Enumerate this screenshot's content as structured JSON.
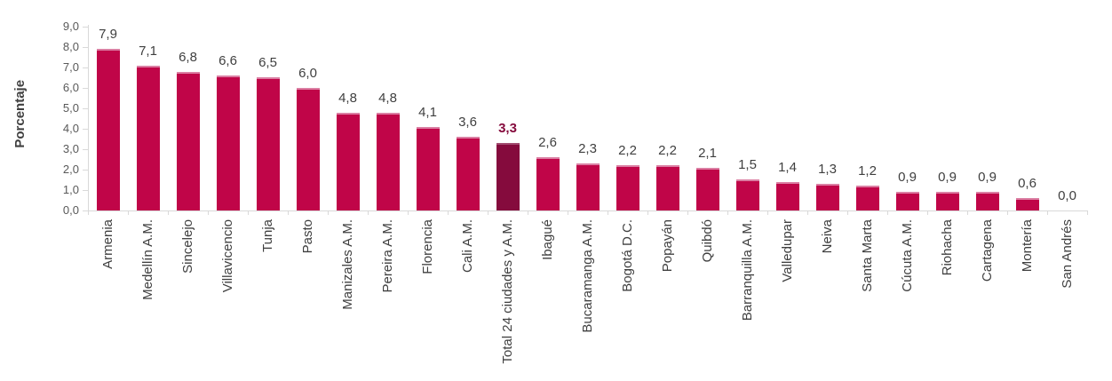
{
  "chart_data": {
    "type": "bar",
    "title": "",
    "xlabel": "",
    "ylabel": "Porcentaje",
    "ylim": [
      0,
      9
    ],
    "grid": false,
    "legend": "none",
    "yticks": [
      "9,0",
      "8,0",
      "7,0",
      "6,0",
      "5,0",
      "4,0",
      "3,0",
      "2,0",
      "1,0",
      "0,0"
    ],
    "categories": [
      "Armenia",
      "Medellín A.M.",
      "Sincelejo",
      "Villavicencio",
      "Tunja",
      "Pasto",
      "Manizales A.M.",
      "Pereira A.M.",
      "Florencia",
      "Cali A.M.",
      "Total 24 ciudades y A.M.",
      "Ibagué",
      "Bucaramanga A.M.",
      "Bogotá D.C.",
      "Popayán",
      "Quibdó",
      "Barranquilla A.M.",
      "Valledupar",
      "Neiva",
      "Santa Marta",
      "Cúcuta A.M.",
      "Riohacha",
      "Cartagena",
      "Montería",
      "San Andrés"
    ],
    "values": [
      7.9,
      7.1,
      6.8,
      6.6,
      6.5,
      6.0,
      4.8,
      4.8,
      4.1,
      3.6,
      3.3,
      2.6,
      2.3,
      2.2,
      2.2,
      2.1,
      1.5,
      1.4,
      1.3,
      1.2,
      0.9,
      0.9,
      0.9,
      0.6,
      0.0
    ],
    "value_labels": [
      "7,9",
      "7,1",
      "6,8",
      "6,6",
      "6,5",
      "6,0",
      "4,8",
      "4,8",
      "4,1",
      "3,6",
      "3,3",
      "2,6",
      "2,3",
      "2,2",
      "2,2",
      "2,1",
      "1,5",
      "1,4",
      "1,3",
      "1,2",
      "0,9",
      "0,9",
      "0,9",
      "0,6",
      "0,0"
    ],
    "highlight_index": 10,
    "highlight_category": "Total 24 ciudades y A.M.",
    "colors": {
      "bar": "#C00548",
      "bar_top_edge": "#DB7FA3",
      "highlight_bar": "#850B3D",
      "highlight_bar_top_edge": "#A24C70",
      "value_label": "#3F3F3F",
      "highlight_value_label": "#850B3D",
      "category_label": "#3F3F3F",
      "y_tick_label": "#595959",
      "axis_line": "#D9D9D9",
      "y_axis_title": "#404040",
      "background": "#FFFFFF"
    }
  }
}
